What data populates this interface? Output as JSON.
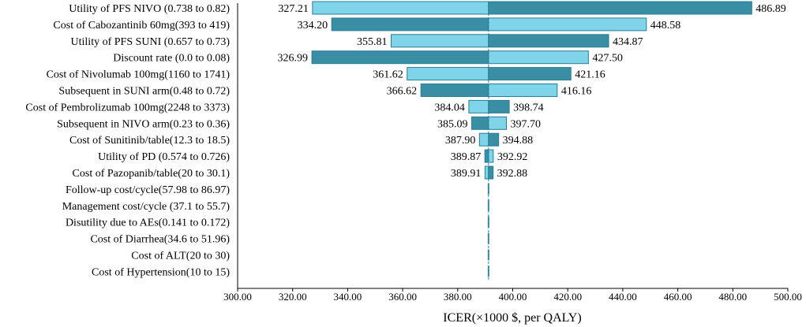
{
  "chart_data": {
    "type": "tornado",
    "xlabel": "ICER(×1000 $, per QALY)",
    "xlim": [
      300,
      500
    ],
    "xticks": [
      300,
      320,
      340,
      360,
      380,
      400,
      420,
      440,
      460,
      480,
      500
    ],
    "xtick_labels": [
      "300.00",
      "320.00",
      "340.00",
      "360.00",
      "380.00",
      "400.00",
      "420.00",
      "440.00",
      "460.00",
      "480.00",
      "500.00"
    ],
    "base": 391.2,
    "colors": {
      "low_bar": "#7fd4ea",
      "high_bar": "#3a8ea3",
      "stroke": "#2a7d93",
      "baseline": "#2a7d93"
    },
    "rows": [
      {
        "label": "Utility of PFS NIVO (0.738 to 0.82)",
        "low": 327.21,
        "high": 486.89,
        "low_text": "327.21",
        "high_text": "486.89",
        "low_on_left": true
      },
      {
        "label": "Cost of Cabozantinib 60mg(393 to 419)",
        "low": 334.2,
        "high": 448.58,
        "low_text": "334.20",
        "high_text": "448.58",
        "low_on_left": false
      },
      {
        "label": "Utility of PFS SUNI (0.657 to 0.73)",
        "low": 355.81,
        "high": 434.87,
        "low_text": "355.81",
        "high_text": "434.87",
        "low_on_left": true
      },
      {
        "label": "Discount rate (0.0 to 0.08)",
        "low": 326.99,
        "high": 427.5,
        "low_text": "326.99",
        "high_text": "427.50",
        "low_on_left": false
      },
      {
        "label": "Cost of Nivolumab 100mg(1160 to 1741)",
        "low": 361.62,
        "high": 421.16,
        "low_text": "361.62",
        "high_text": "421.16",
        "low_on_left": true
      },
      {
        "label": "Subsequent in SUNI arm(0.48 to 0.72)",
        "low": 366.62,
        "high": 416.16,
        "low_text": "366.62",
        "high_text": "416.16",
        "low_on_left": false
      },
      {
        "label": "Cost of Pembrolizumab 100mg(2248 to 3373)",
        "low": 384.04,
        "high": 398.74,
        "low_text": "384.04",
        "high_text": "398.74",
        "low_on_left": true
      },
      {
        "label": "Subsequent in NIVO arm(0.23 to 0.36)",
        "low": 385.09,
        "high": 397.7,
        "low_text": "385.09",
        "high_text": "397.70",
        "low_on_left": false
      },
      {
        "label": "Cost of Sunitinib/table(12.3 to 18.5)",
        "low": 387.9,
        "high": 394.88,
        "low_text": "387.90",
        "high_text": "394.88",
        "low_on_left": true
      },
      {
        "label": "Utility of PD (0.574 to 0.726)",
        "low": 389.87,
        "high": 392.92,
        "low_text": "389.87",
        "high_text": "392.92",
        "low_on_left": false
      },
      {
        "label": "Cost of Pazopanib/table(20 to 30.1)",
        "low": 389.91,
        "high": 392.88,
        "low_text": "389.91",
        "high_text": "392.88",
        "low_on_left": true
      },
      {
        "label": "Follow-up cost/cycle(57.98 to 86.97)",
        "low": 390.9,
        "high": 391.5,
        "low_text": "",
        "high_text": "",
        "low_on_left": true
      },
      {
        "label": "Management cost/cycle (37.1 to 55.7)",
        "low": 390.9,
        "high": 391.5,
        "low_text": "",
        "high_text": "",
        "low_on_left": true
      },
      {
        "label": "Disutility due to AEs(0.141 to 0.172)",
        "low": 390.9,
        "high": 391.5,
        "low_text": "",
        "high_text": "",
        "low_on_left": true
      },
      {
        "label": "Cost of Diarrhea(34.6 to 51.96)",
        "low": 390.9,
        "high": 391.5,
        "low_text": "",
        "high_text": "",
        "low_on_left": true
      },
      {
        "label": "Cost of ALT(20 to 30)",
        "low": 390.9,
        "high": 391.5,
        "low_text": "",
        "high_text": "",
        "low_on_left": true
      },
      {
        "label": "Cost of Hypertension(10 to 15)",
        "low": 390.9,
        "high": 391.5,
        "low_text": "",
        "high_text": "",
        "low_on_left": true
      }
    ]
  }
}
